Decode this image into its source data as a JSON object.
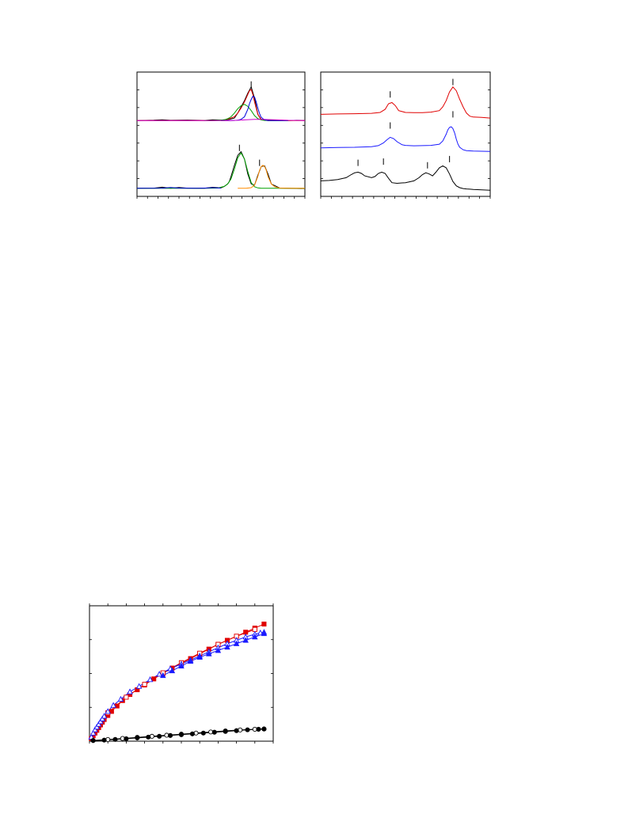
{
  "chart_data": [
    {
      "type": "line",
      "title": "",
      "xlabel": "",
      "ylabel": "",
      "xlim": [
        0,
        100
      ],
      "ylim": [
        0,
        100
      ],
      "grid": false,
      "series": [
        {
          "color": "#000000",
          "x": [
            0,
            10,
            15,
            20,
            30,
            40,
            45,
            50,
            55,
            58,
            60,
            62,
            64,
            66,
            68,
            70,
            72,
            74,
            76,
            78,
            80,
            85,
            90,
            95,
            100
          ],
          "values": [
            61,
            61.3,
            61.6,
            61.2,
            61.4,
            61.1,
            61.6,
            61.4,
            62,
            63,
            67,
            72,
            77,
            83,
            88,
            79,
            66,
            61.5,
            61.4,
            61.1,
            61.2,
            61.3,
            61,
            61.2,
            61.1
          ]
        },
        {
          "color": "#e00000",
          "x": [
            0,
            10,
            20,
            30,
            40,
            45,
            50,
            52,
            55,
            58,
            60,
            62,
            64,
            66,
            67,
            68,
            69,
            70,
            72,
            74,
            76,
            78,
            80,
            85,
            90,
            95,
            100
          ],
          "values": [
            61,
            61,
            61,
            61,
            61,
            61,
            61.2,
            61.5,
            62.5,
            64,
            67,
            71,
            76,
            82,
            85,
            86,
            82,
            76,
            66,
            62,
            61.3,
            61,
            61,
            61,
            61,
            61,
            61
          ]
        },
        {
          "color": "#00a000",
          "x": [
            40,
            45,
            50,
            52,
            54,
            56,
            58,
            60,
            62,
            64,
            66,
            68,
            70,
            72,
            74,
            76,
            80,
            85,
            90
          ],
          "values": [
            61,
            61,
            61.3,
            61.6,
            62.5,
            64,
            67,
            70.5,
            73,
            74,
            72.5,
            69,
            65,
            62.5,
            61.5,
            61.1,
            61,
            61,
            61
          ]
        },
        {
          "color": "#0000dd",
          "x": [
            50,
            55,
            58,
            60,
            62,
            64,
            66,
            67,
            68,
            69,
            70,
            71,
            72,
            73,
            74,
            76,
            78,
            80,
            85,
            90
          ],
          "values": [
            61,
            61,
            61.1,
            61.3,
            62,
            64,
            70,
            74.5,
            78,
            80.5,
            80,
            76,
            71,
            66.5,
            63.5,
            61.5,
            61,
            61,
            61,
            61
          ]
        },
        {
          "color": "#cc00cc",
          "x": [
            0,
            20,
            40,
            55,
            60,
            65,
            70,
            75,
            80,
            90,
            100
          ],
          "values": [
            61,
            61,
            61,
            61,
            61.2,
            61.6,
            61.9,
            62,
            61.7,
            61.2,
            61
          ]
        },
        {
          "color": "#000000",
          "x": [
            0,
            10,
            15,
            20,
            25,
            30,
            40,
            45,
            50,
            52,
            54,
            55,
            56,
            58,
            60,
            62,
            64,
            66,
            68,
            70,
            72,
            74,
            76,
            78,
            80,
            85,
            90,
            95,
            100
          ],
          "values": [
            6.5,
            6.6,
            7.4,
            6.5,
            7.2,
            6.6,
            6.5,
            7.3,
            6.8,
            8,
            10,
            12,
            16,
            25,
            33,
            36,
            30,
            18,
            10,
            9,
            17,
            24,
            24.5,
            18,
            10,
            6.7,
            6.5,
            6.4,
            6.3
          ]
        },
        {
          "color": "#00a000",
          "x": [
            0,
            20,
            40,
            48,
            52,
            54,
            56,
            58,
            60,
            62,
            64,
            66,
            68,
            70,
            72,
            74,
            80,
            100
          ],
          "values": [
            6.5,
            6.5,
            6.5,
            6.7,
            8,
            10,
            14,
            22,
            31,
            35,
            30,
            20,
            11,
            7.8,
            6.8,
            6.5,
            6.5,
            6.5
          ]
        },
        {
          "color": "#ff8c00",
          "x": [
            60,
            65,
            68,
            70,
            72,
            73,
            74,
            75,
            76,
            77,
            78,
            80,
            82,
            85,
            90,
            100
          ],
          "values": [
            6.5,
            6.5,
            7,
            9,
            16,
            21,
            24,
            25,
            24,
            21,
            16,
            10,
            7.8,
            6.7,
            6.5,
            6.5
          ]
        },
        {
          "color": "#0000dd",
          "x": [
            0,
            15,
            20,
            25,
            30,
            35,
            40,
            45,
            50
          ],
          "values": [
            6.5,
            6.6,
            7.2,
            6.7,
            6.6,
            6.5,
            6.6,
            7,
            6.7
          ]
        }
      ],
      "markers": [
        {
          "x": 68,
          "y": 90
        },
        {
          "x": 61,
          "y": 39
        },
        {
          "x": 73,
          "y": 27
        }
      ]
    },
    {
      "type": "line",
      "title": "",
      "xlabel": "",
      "ylabel": "",
      "xlim": [
        0,
        100
      ],
      "ylim": [
        0,
        100
      ],
      "grid": false,
      "series": [
        {
          "color": "#e00000",
          "x": [
            0,
            10,
            20,
            30,
            35,
            38,
            40,
            42,
            44,
            46,
            50,
            55,
            60,
            65,
            70,
            72,
            74,
            76,
            78,
            80,
            82,
            84,
            86,
            88,
            90,
            95,
            100
          ],
          "values": [
            66,
            66.3,
            66.5,
            66.8,
            67.5,
            70,
            74.5,
            75.5,
            73,
            69,
            67.5,
            67.3,
            67.4,
            67.8,
            69,
            72,
            77,
            84,
            88,
            85,
            78,
            72,
            67,
            64.5,
            63.8,
            63.5,
            63
          ]
        },
        {
          "color": "#1a1aff",
          "x": [
            0,
            10,
            20,
            30,
            34,
            37,
            39,
            41,
            43,
            45,
            48,
            50,
            55,
            60,
            65,
            70,
            72,
            74,
            75,
            76,
            77,
            78,
            79,
            80,
            81,
            82,
            84,
            86,
            90,
            95,
            100
          ],
          "values": [
            39,
            39.3,
            39.5,
            40,
            40.8,
            43,
            45.5,
            47.5,
            46.5,
            44,
            41.5,
            41,
            40.7,
            40.8,
            41,
            42,
            44.5,
            50,
            53.5,
            55.5,
            56,
            54.5,
            51,
            46,
            42,
            39.5,
            37.5,
            36.8,
            36.5,
            36.3,
            36.2
          ]
        },
        {
          "color": "#000000",
          "x": [
            0,
            5,
            10,
            15,
            18,
            20,
            22,
            24,
            26,
            30,
            32,
            34,
            36,
            38,
            40,
            42,
            45,
            50,
            55,
            58,
            60,
            62,
            64,
            66,
            68,
            70,
            72,
            74,
            76,
            78,
            80,
            82,
            84,
            86,
            88,
            90,
            95,
            100
          ],
          "values": [
            12.5,
            12.8,
            13.5,
            15,
            17.5,
            19,
            19.5,
            18.5,
            16.5,
            15,
            16,
            18.5,
            19.5,
            18.5,
            14.5,
            11,
            10.5,
            11,
            12.5,
            15,
            17.5,
            19,
            18,
            16.5,
            19.5,
            23,
            24.5,
            23,
            18,
            12,
            8.5,
            7,
            6.3,
            6,
            5.8,
            5.6,
            5.3,
            5
          ]
        }
      ],
      "markers": [
        {
          "x": 41,
          "y": 82
        },
        {
          "x": 78,
          "y": 92
        },
        {
          "x": 41,
          "y": 57
        },
        {
          "x": 78,
          "y": 66
        },
        {
          "x": 22,
          "y": 27
        },
        {
          "x": 37,
          "y": 28
        },
        {
          "x": 63,
          "y": 25
        },
        {
          "x": 76,
          "y": 30
        }
      ]
    },
    {
      "type": "scatter",
      "title": "",
      "xlabel": "",
      "ylabel": "",
      "xlim": [
        0,
        100
      ],
      "ylim": [
        0,
        100
      ],
      "grid": false,
      "series": [
        {
          "color": "#e00000",
          "marker": "square-filled",
          "x": [
            1,
            2,
            3,
            4,
            5,
            6,
            7,
            8,
            10,
            12,
            15,
            18,
            22,
            26,
            30,
            35,
            40,
            45,
            50,
            55,
            60,
            65,
            70,
            75,
            80,
            85,
            90,
            95
          ],
          "values": [
            2,
            4,
            6,
            8,
            10,
            12,
            14,
            16,
            19,
            22,
            26,
            30,
            34.5,
            38,
            41.5,
            46,
            50,
            54,
            57.5,
            61,
            64.5,
            68,
            71.5,
            74.5,
            77.5,
            80.5,
            83.5,
            86.5
          ]
        },
        {
          "color": "#e00000",
          "marker": "square-open",
          "x": [
            10,
            20,
            30,
            40,
            50,
            60,
            70,
            80,
            90
          ],
          "values": [
            21,
            32.5,
            42,
            50.5,
            58,
            65,
            71.5,
            77.5,
            82.5
          ]
        },
        {
          "color": "#1a1aff",
          "marker": "triangle-open",
          "x": [
            1,
            2,
            3,
            4,
            5,
            6,
            7,
            8,
            10,
            13,
            17,
            22,
            27,
            33,
            38,
            44,
            50,
            55,
            60,
            65,
            70,
            75,
            80,
            85,
            90,
            93,
            95
          ],
          "values": [
            3,
            6,
            8.5,
            10.5,
            12.5,
            14.5,
            16.5,
            18.5,
            22,
            26.5,
            31,
            36.5,
            40.5,
            45.5,
            49.5,
            53.5,
            57,
            60,
            63,
            66,
            69,
            72,
            74.5,
            77,
            79,
            80,
            80.5
          ]
        },
        {
          "color": "#1a1aff",
          "marker": "triangle-filled",
          "x": [
            40,
            45,
            50,
            55,
            60,
            65,
            70,
            75,
            80,
            85,
            90,
            95
          ],
          "values": [
            48.5,
            52,
            55.5,
            59,
            62,
            64.5,
            67,
            69.5,
            72,
            74.5,
            77,
            79.5
          ]
        },
        {
          "color": "#000000",
          "marker": "circle-open",
          "x": [
            2,
            10,
            18,
            26,
            34,
            42,
            50,
            58,
            66,
            74,
            82,
            90,
            95
          ],
          "values": [
            0.5,
            1.2,
            2,
            2.8,
            3.6,
            4.4,
            5.2,
            6,
            6.8,
            7.6,
            8.3,
            8.8,
            9
          ]
        },
        {
          "color": "#000000",
          "marker": "circle-filled",
          "x": [
            2,
            8,
            14,
            20,
            26,
            32,
            38,
            44,
            50,
            56,
            62,
            68,
            74,
            80,
            86,
            92,
            95
          ],
          "values": [
            0.5,
            0.8,
            1.3,
            1.8,
            2.4,
            3,
            3.6,
            4.2,
            4.8,
            5.4,
            6,
            6.6,
            7.2,
            7.8,
            8.4,
            8.8,
            9
          ]
        }
      ]
    }
  ]
}
